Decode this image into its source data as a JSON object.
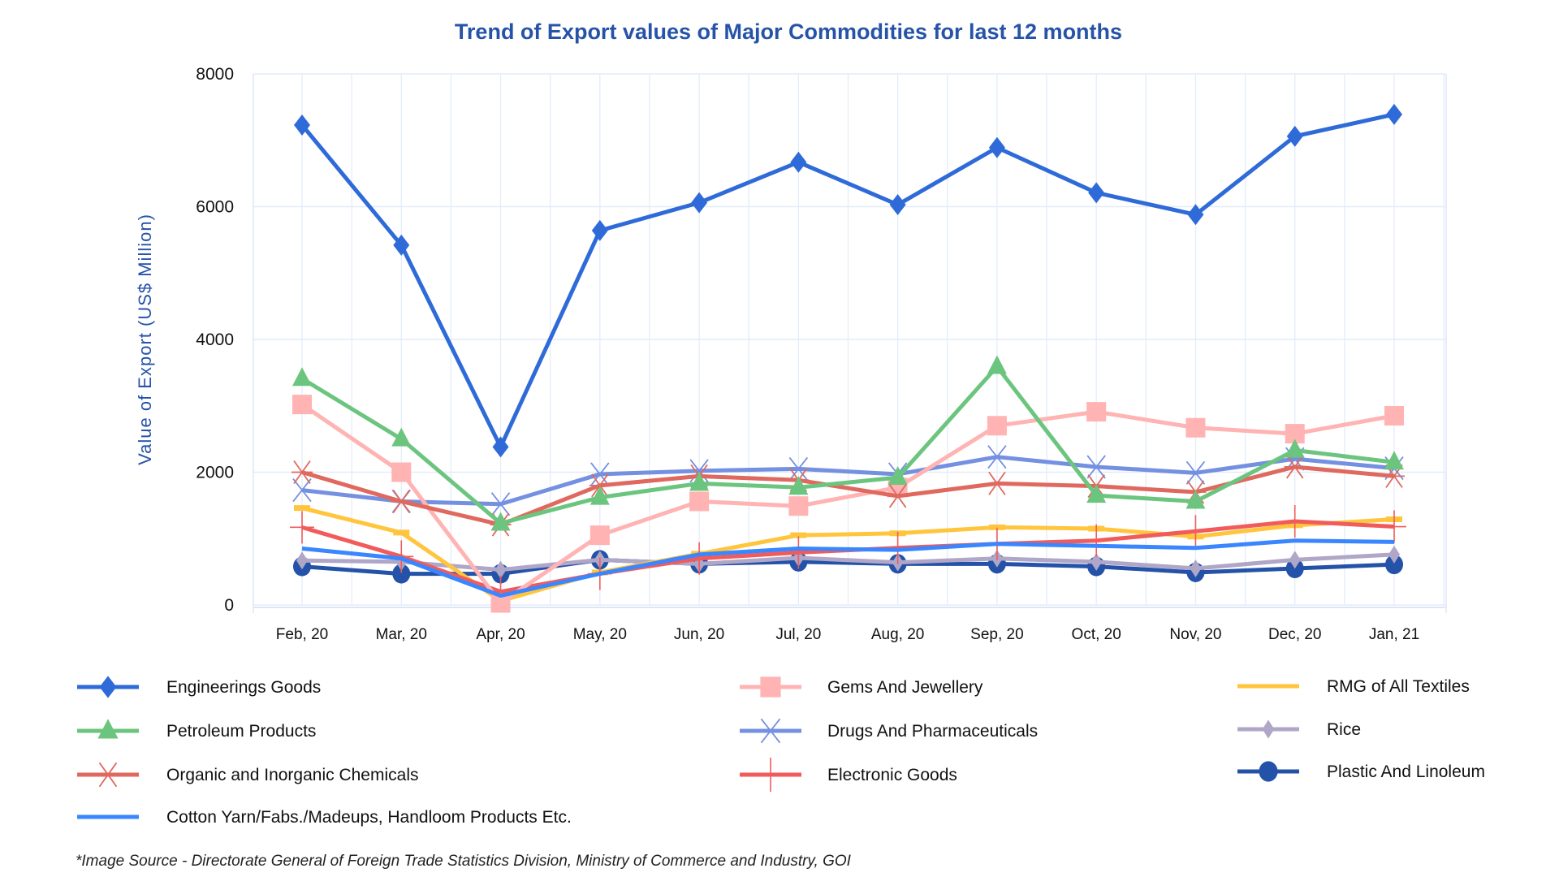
{
  "chart_data": {
    "type": "line",
    "title": "Trend of Export values of Major Commodities for last 12 months",
    "xlabel": "",
    "ylabel": "Value of Export (US$ Million)",
    "ylim": [
      0,
      8000
    ],
    "yticks": [
      "0",
      "2000",
      "4000",
      "6000",
      "8000"
    ],
    "grid": true,
    "legend_position": "bottom",
    "categories": [
      "Feb, 20",
      "Mar, 20",
      "Apr, 20",
      "May, 20",
      "Jun, 20",
      "Jul, 20",
      "Aug, 20",
      "Sep, 20",
      "Oct, 20",
      "Nov, 20",
      "Dec, 20",
      "Jan, 21"
    ],
    "series": [
      {
        "name": "Engineerings Goods",
        "color": "#2f6bd8",
        "marker": "diamond",
        "values": [
          7230,
          5420,
          2380,
          5640,
          6060,
          6670,
          6030,
          6890,
          6210,
          5880,
          7060,
          7390
        ]
      },
      {
        "name": "Petroleum Products",
        "color": "#6cc57f",
        "marker": "triangle",
        "values": [
          3410,
          2500,
          1230,
          1620,
          1830,
          1770,
          1920,
          3590,
          1650,
          1560,
          2330,
          2150
        ]
      },
      {
        "name": "Organic and Inorganic Chemicals",
        "color": "#e0695f",
        "marker": "asterisk",
        "values": [
          2000,
          1560,
          1210,
          1800,
          1940,
          1880,
          1640,
          1830,
          1790,
          1700,
          2080,
          1940
        ]
      },
      {
        "name": "Cotton Yarn/Fabs./Madeups, Handloom Products Etc.",
        "color": "#3a86ff",
        "marker": "none",
        "values": [
          850,
          700,
          140,
          470,
          760,
          850,
          830,
          920,
          890,
          860,
          970,
          950
        ]
      },
      {
        "name": "Gems And Jewellery",
        "color": "#ffb3b3",
        "marker": "square",
        "values": [
          3020,
          2000,
          30,
          1050,
          1560,
          1490,
          1770,
          2700,
          2910,
          2670,
          2580,
          2850
        ]
      },
      {
        "name": "Drugs And Pharmaceuticals",
        "color": "#7490e0",
        "marker": "x",
        "values": [
          1730,
          1560,
          1520,
          1970,
          2020,
          2050,
          1970,
          2230,
          2080,
          1990,
          2200,
          2060
        ]
      },
      {
        "name": "Electronic Goods",
        "color": "#f25b5b",
        "marker": "cross",
        "values": [
          1170,
          730,
          200,
          470,
          700,
          790,
          860,
          920,
          970,
          1110,
          1260,
          1180
        ]
      },
      {
        "name": "RMG of All Textiles",
        "color": "#ffc53d",
        "marker": "dash",
        "values": [
          1460,
          1090,
          60,
          490,
          770,
          1050,
          1080,
          1170,
          1150,
          1030,
          1200,
          1290
        ]
      },
      {
        "name": "Rice",
        "color": "#b0a6c8",
        "marker": "smalldiamond",
        "values": [
          670,
          650,
          530,
          680,
          620,
          710,
          640,
          700,
          650,
          550,
          680,
          760
        ]
      },
      {
        "name": "Plastic And Linoleum",
        "color": "#2352a8",
        "marker": "circle",
        "values": [
          580,
          470,
          470,
          680,
          620,
          650,
          620,
          620,
          580,
          490,
          550,
          610
        ]
      }
    ]
  },
  "footnote": "*Image Source - Directorate General of Foreign Trade Statistics Division, Ministry of Commerce and Industry, GOI"
}
